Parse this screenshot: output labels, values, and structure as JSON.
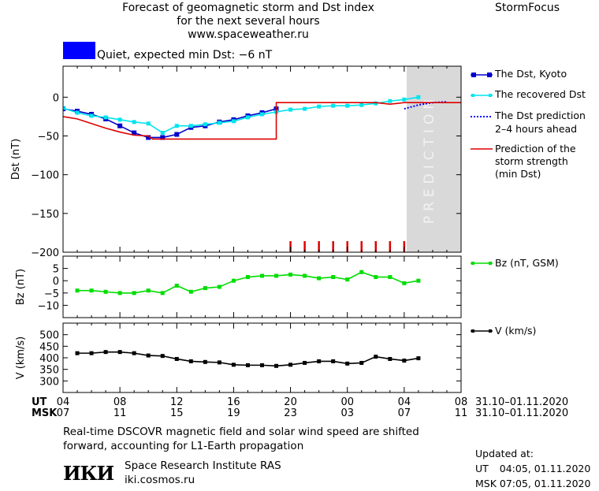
{
  "header": {
    "title_line1": "Forecast of geomagnetic storm and Dst index",
    "title_line2": "for the next several hours",
    "url": "www.spaceweather.ru",
    "brand": "StormFocus"
  },
  "status": {
    "text": "Quiet, expected min Dst: −6 nT",
    "swatch_color": "#0000ff"
  },
  "chart_data": [
    {
      "type": "line",
      "id": "dst",
      "ylabel": "Dst (nT)",
      "ylim": [
        -200,
        40
      ],
      "yticks": [
        0,
        -50,
        -100,
        -150,
        -200
      ],
      "xlim": [
        4,
        32
      ],
      "prediction_region": {
        "x": [
          28,
          32
        ],
        "label": "PREDICTION"
      },
      "series": [
        {
          "name": "The Dst, Kyoto",
          "color": "#0000cc",
          "marker": "square",
          "x": [
            4,
            5,
            6,
            7,
            8,
            9,
            10,
            11,
            12,
            13,
            14,
            15,
            16,
            17,
            18,
            19
          ],
          "y": [
            -15,
            -18,
            -22,
            -28,
            -37,
            -46,
            -52,
            -52,
            -48,
            -39,
            -37,
            -32,
            -29,
            -24,
            -20,
            -15
          ]
        },
        {
          "name": "The recovered Dst",
          "color": "#00e5ee",
          "marker": "square",
          "x": [
            4,
            5,
            6,
            7,
            8,
            9,
            10,
            11,
            12,
            13,
            14,
            15,
            16,
            17,
            18,
            19,
            20,
            21,
            22,
            23,
            24,
            25,
            26,
            27,
            28,
            29
          ],
          "y": [
            -14,
            -20,
            -24,
            -26,
            -29,
            -32,
            -34,
            -46,
            -37,
            -37,
            -35,
            -33,
            -31,
            -26,
            -22,
            -19,
            -16,
            -15,
            -12,
            -11,
            -11,
            -10,
            -8,
            -5,
            -3,
            0
          ]
        },
        {
          "name": "The Dst prediction 2–4 hours ahead",
          "color": "#0000ff",
          "style": "dotted",
          "x": [
            28,
            29,
            30,
            31
          ],
          "y": [
            -15,
            -10,
            -7,
            -6
          ]
        },
        {
          "name": "Prediction of the storm strength (min Dst)",
          "color": "#dd0000",
          "x": [
            4,
            5,
            6,
            7,
            8,
            9,
            10,
            10.3,
            12,
            14,
            16,
            18,
            19,
            19,
            26,
            27,
            28,
            32
          ],
          "y": [
            -25,
            -28,
            -34,
            -40,
            -45,
            -49,
            -50,
            -54,
            -54,
            -54,
            -54,
            -54,
            -54,
            -7,
            -7,
            -9,
            -7,
            -7
          ]
        }
      ],
      "tick_marks": {
        "color": "#dd0000",
        "x": [
          20,
          21,
          22,
          23,
          24,
          25,
          26,
          27,
          28
        ]
      }
    },
    {
      "type": "line",
      "id": "bz",
      "ylabel": "Bz (nT)",
      "ylim": [
        -15,
        10
      ],
      "yticks": [
        5,
        0,
        -5,
        -10
      ],
      "xlim": [
        4,
        32
      ],
      "series": [
        {
          "name": "Bz (nT, GSM)",
          "color": "#00dd00",
          "marker": "square",
          "x": [
            5,
            6,
            7,
            8,
            9,
            10,
            11,
            12,
            13,
            14,
            15,
            16,
            17,
            18,
            19,
            20,
            21,
            22,
            23,
            24,
            25,
            26,
            27,
            28,
            29
          ],
          "y": [
            -4,
            -4,
            -4.5,
            -5,
            -5,
            -4,
            -5,
            -2,
            -4.5,
            -3,
            -2.5,
            0,
            1.5,
            2,
            2,
            2.5,
            2,
            1,
            1.5,
            0.5,
            3.5,
            1.5,
            1.5,
            -1,
            0
          ]
        }
      ]
    },
    {
      "type": "line",
      "id": "v",
      "ylabel": "V (km/s)",
      "ylim": [
        250,
        550
      ],
      "yticks": [
        500,
        450,
        400,
        350,
        300
      ],
      "xlim": [
        4,
        32
      ],
      "series": [
        {
          "name": "V (km/s)",
          "color": "#000000",
          "marker": "square",
          "x": [
            5,
            6,
            7,
            8,
            9,
            10,
            11,
            12,
            13,
            14,
            15,
            16,
            17,
            18,
            19,
            20,
            21,
            22,
            23,
            24,
            25,
            26,
            27,
            28,
            29
          ],
          "y": [
            420,
            420,
            425,
            425,
            420,
            410,
            408,
            395,
            385,
            382,
            380,
            370,
            368,
            368,
            365,
            370,
            378,
            385,
            385,
            375,
            378,
            405,
            395,
            388,
            398
          ]
        }
      ]
    }
  ],
  "x_axis": {
    "ut_label": "UT",
    "msk_label": "MSK",
    "ut_ticks": [
      "04",
      "08",
      "12",
      "16",
      "20",
      "00",
      "04",
      "08"
    ],
    "msk_ticks": [
      "07",
      "11",
      "15",
      "19",
      "23",
      "03",
      "07",
      "11"
    ],
    "ut_date_range": "31.10–01.11.2020",
    "msk_date_range": "31.10–01.11.2020"
  },
  "legend": {
    "dst_kyoto": "The Dst, Kyoto",
    "recovered": "The recovered Dst",
    "prediction_line1": "The Dst prediction",
    "prediction_line2": "2–4 hours ahead",
    "strength_line1": "Prediction of the",
    "strength_line2": "storm strength",
    "strength_line3": "(min Dst)",
    "bz": "Bz (nT, GSM)",
    "v": "V (km/s)"
  },
  "footer": {
    "note_line1": "Real-time DSCOVR magnetic field and solar wind speed are shifted",
    "note_line2": "forward, accounting for L1-Earth propagation",
    "logo_text": "ИКИ",
    "institute": "Space Research Institute RAS",
    "institute_url": "iki.cosmos.ru",
    "updated_label": "Updated at:",
    "updated_ut_label": "UT",
    "updated_ut": "04:05, 01.11.2020",
    "updated_msk_label": "MSK",
    "updated_msk": "07:05, 01.11.2020"
  }
}
